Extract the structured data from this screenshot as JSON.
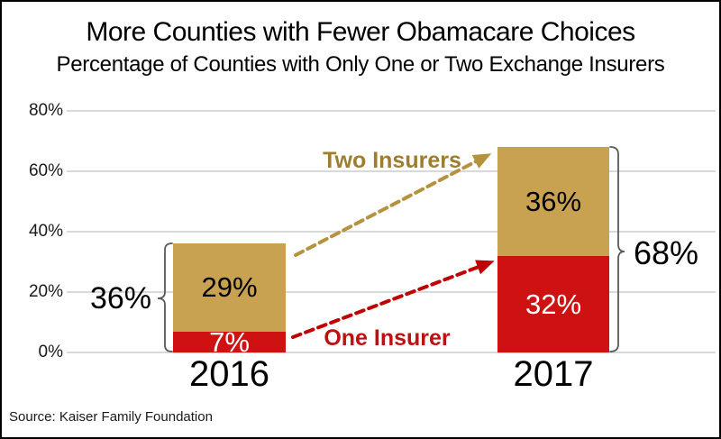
{
  "title": "More Counties with Fewer Obamacare Choices",
  "subtitle": "Percentage of Counties with Only One or Two Exchange Insurers",
  "source": "Source: Kaiser Family Foundation",
  "annotations": {
    "two_insurers": "Two Insurers",
    "one_insurer": "One Insurer"
  },
  "colors": {
    "two_insurers_bar": "#C9A251",
    "one_insurer_bar": "#CE1212",
    "two_insurers_text": "#9E7E2E",
    "one_insurer_text": "#BE1010",
    "two_insurers_arrow": "#B4923E",
    "one_insurer_arrow": "#C00000",
    "gridline": "#D9D9D9",
    "bracket": "#595959"
  },
  "chart_data": {
    "type": "bar",
    "stacked": true,
    "categories": [
      "2016",
      "2017"
    ],
    "series": [
      {
        "name": "One Insurer",
        "values": [
          7,
          32
        ],
        "labels": [
          "7%",
          "32%"
        ],
        "color": "#CE1212"
      },
      {
        "name": "Two Insurers",
        "values": [
          29,
          36
        ],
        "labels": [
          "29%",
          "36%"
        ],
        "color": "#C9A251"
      }
    ],
    "totals": [
      36,
      68
    ],
    "total_labels": [
      "36%",
      "68%"
    ],
    "ylim": [
      0,
      80
    ],
    "yticks": [
      0,
      20,
      40,
      60,
      80
    ],
    "ytick_labels": [
      "0%",
      "20%",
      "40%",
      "60%",
      "80%"
    ],
    "grid": true,
    "legend_position": "inline-annotations"
  }
}
